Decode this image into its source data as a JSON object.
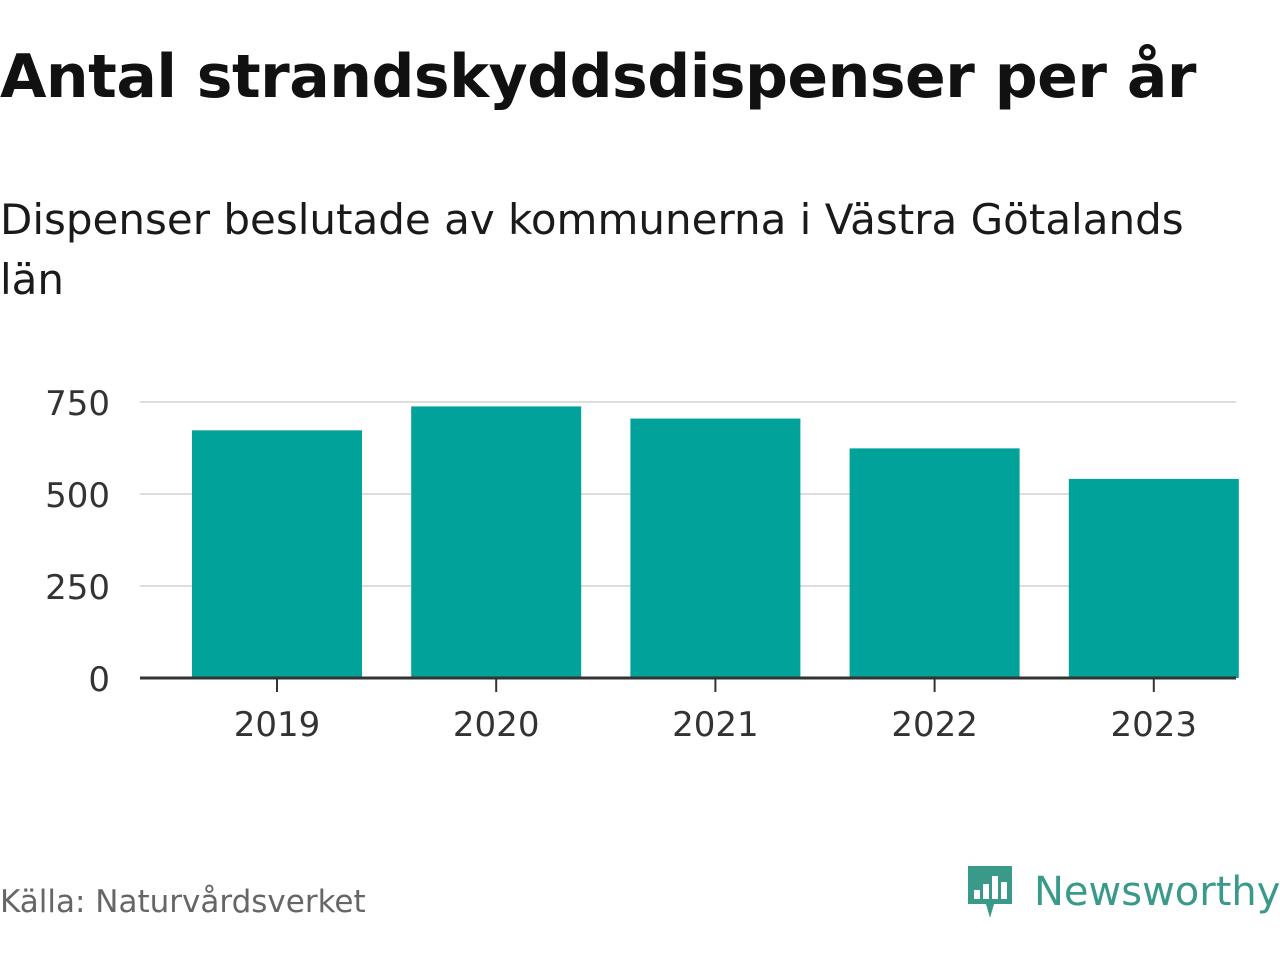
{
  "chart_data": {
    "type": "bar",
    "title": "Antal strandskyddsdispenser per år",
    "subtitle": "Dispenser beslutade av kommunerna i Västra Götalands län",
    "categories": [
      "2019",
      "2020",
      "2021",
      "2022",
      "2023"
    ],
    "values": [
      673,
      738,
      705,
      624,
      541
    ],
    "ylim": [
      0,
      750
    ],
    "yticks": [
      0,
      250,
      500,
      750
    ],
    "xlabel": "",
    "ylabel": "",
    "grid": true,
    "bar_color": "#00A29A"
  },
  "footer": {
    "source": "Källa: Naturvårdsverket",
    "brand": "Newsworthy"
  },
  "colors": {
    "brand": "#3A9A8A",
    "grid": "#DDDDDD",
    "axis": "#333333"
  }
}
